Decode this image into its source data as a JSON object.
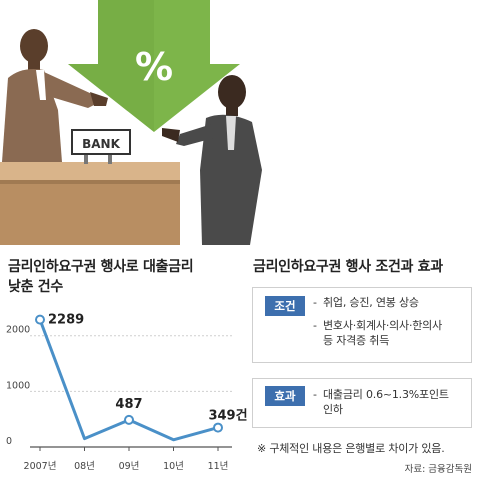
{
  "illustration": {
    "arrow_symbol": "%",
    "sign_text": "BANK",
    "icons": [
      "down-arrow-icon",
      "percent-icon",
      "bank-sign-icon",
      "handshake-illustration"
    ],
    "colors": {
      "arrow": "#7db54a",
      "counter": "#c9a47a",
      "bank_clerk": "#8a6a52",
      "customer": "#4a4a4a"
    }
  },
  "left_section": {
    "title_line1": "금리인하요구권 행사로 대출금리",
    "title_line2": "낮춘 건수"
  },
  "chart_data": {
    "type": "line",
    "x": [
      "2007년",
      "08년",
      "09년",
      "10년",
      "11년"
    ],
    "series": [
      {
        "values": [
          2289,
          150,
          487,
          130,
          349
        ]
      }
    ],
    "data_labels": [
      "2289",
      "",
      "487",
      "",
      "349건"
    ],
    "y_ticks": [
      "2000",
      "1000",
      "0"
    ],
    "ylim": [
      0,
      2300
    ],
    "grid": true,
    "line_color": "#4a90c8"
  },
  "right_section": {
    "title": "금리인하요구권 행사 조건과 효과",
    "conditions": {
      "tag": "조건",
      "items": [
        "취업, 승진, 연봉 상승",
        "변호사·회계사·의사·한의사",
        "등 자격증 취득"
      ]
    },
    "effects": {
      "tag": "효과",
      "items": [
        "대출금리 0.6~1.3%포인트",
        "인하"
      ]
    },
    "note": "※ 구체적인 내용은 은행별로 차이가 있음.",
    "source": "자료: 금융감독원"
  }
}
